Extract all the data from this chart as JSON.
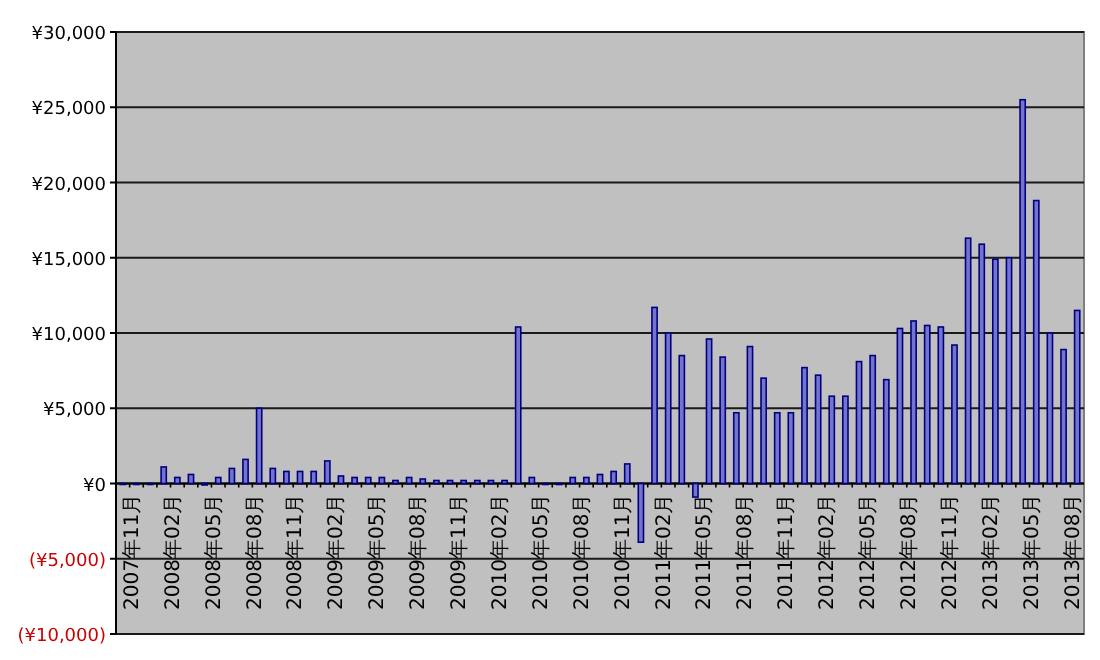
{
  "chart_data": {
    "type": "bar",
    "categories": [
      "2007年11月",
      null,
      null,
      "2008年02月",
      null,
      null,
      "2008年05月",
      null,
      null,
      "2008年08月",
      null,
      null,
      "2008年11月",
      null,
      null,
      "2009年02月",
      null,
      null,
      "2009年05月",
      null,
      null,
      "2009年08月",
      null,
      null,
      "2009年11月",
      null,
      null,
      "2010年02月",
      null,
      null,
      "2010年05月",
      null,
      null,
      "2010年08月",
      null,
      null,
      "2010年11月",
      null,
      null,
      "2011年02月",
      null,
      null,
      "2011年05月",
      null,
      null,
      "2011年08月",
      null,
      null,
      "2011年11月",
      null,
      null,
      "2012年02月",
      null,
      null,
      "2012年05月",
      null,
      null,
      "2012年08月",
      null,
      null,
      "2012年11月",
      null,
      null,
      "2013年02月",
      null,
      null,
      "2013年05月",
      null,
      null,
      "2013年08月",
      null
    ],
    "values": [
      0,
      0,
      0,
      1100,
      400,
      600,
      -100,
      400,
      1000,
      1600,
      5000,
      1000,
      800,
      800,
      800,
      1500,
      500,
      400,
      400,
      400,
      200,
      400,
      300,
      200,
      200,
      200,
      200,
      200,
      200,
      10400,
      400,
      0,
      0,
      400,
      400,
      600,
      800,
      1300,
      -3900,
      11700,
      10000,
      8500,
      -900,
      9600,
      8400,
      4700,
      9100,
      7000,
      4700,
      4700,
      7700,
      7200,
      5800,
      5800,
      8100,
      8500,
      6900,
      10300,
      10800,
      10500,
      10400,
      9200,
      16300,
      15900,
      14900,
      15000,
      25500,
      18800,
      10000,
      8900,
      11500
    ],
    "color": "#7474cc",
    "ylim": [
      -10000,
      30000
    ],
    "yticks": [
      {
        "value": -10000,
        "label": "(¥10,000)"
      },
      {
        "value": -5000,
        "label": "(¥5,000)"
      },
      {
        "value": 0,
        "label": "¥0"
      },
      {
        "value": 5000,
        "label": "¥5,000"
      },
      {
        "value": 10000,
        "label": "¥10,000"
      },
      {
        "value": 15000,
        "label": "¥15,000"
      },
      {
        "value": 20000,
        "label": "¥20,000"
      },
      {
        "value": 25000,
        "label": "¥25,000"
      },
      {
        "value": 30000,
        "label": "¥30,000"
      }
    ],
    "grid": "y"
  }
}
